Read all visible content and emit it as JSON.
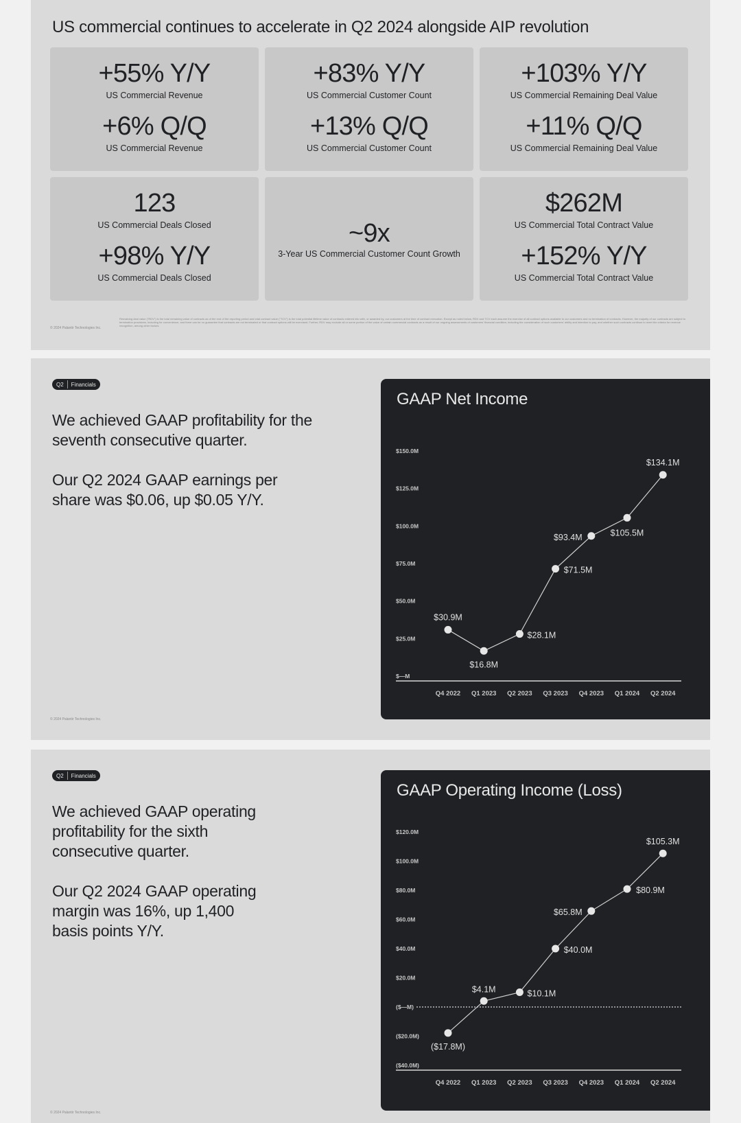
{
  "slide1": {
    "title": "US commercial continues to accelerate in Q2 2024 alongside AIP revolution",
    "cards": [
      {
        "v1": "+55% Y/Y",
        "l1": "US Commercial Revenue",
        "v2": "+6% Q/Q",
        "l2": "US Commercial Revenue"
      },
      {
        "v1": "+83% Y/Y",
        "l1": "US Commercial Customer Count",
        "v2": "+13% Q/Q",
        "l2": "US Commercial Customer Count"
      },
      {
        "v1": "+103% Y/Y",
        "l1": "US Commercial Remaining Deal Value",
        "v2": "+11% Q/Q",
        "l2": "US Commercial Remaining Deal Value"
      },
      {
        "v1": "123",
        "l1": "US Commercial Deals Closed",
        "v2": "+98% Y/Y",
        "l2": "US Commercial Deals Closed"
      },
      {
        "v1": "~9x",
        "l1": "3-Year US Commercial Customer Count Growth"
      },
      {
        "v1": "$262M",
        "l1": "US Commercial Total Contract Value",
        "v2": "+152% Y/Y",
        "l2": "US Commercial Total Contract Value"
      }
    ],
    "copyright": "© 2024 Palantir Technologies Inc.",
    "footnote": "Remaining deal value (\"RDV\") is the total remaining value of contracts as of the end of the reporting period and total contract value (\"TCV\") is the total potential lifetime value of contracts entered into with, or awarded by, our customers at the time of contract execution. Except as noted below, RDV and TCV each assume the exercise of all contract options available to our customers and no termination of contracts. However, the majority of our contracts are subject to termination provisions, including for convenience, and there can be no guarantee that contracts are not terminated or that contract options will be exercised. Further, RDV may exclude all or some portion of the value of certain commercial contracts as a result of our ongoing assessments of customers' financial condition, including the consideration of such customers' ability and intention to pay, and whether such contracts continue to meet the criteria for revenue recognition, among other factors."
  },
  "slide2": {
    "tag_left": "Q2",
    "tag_right": "Financials",
    "body_p1": "We achieved GAAP profitability for the seventh consecutive quarter.",
    "body_p2": "Our Q2 2024 GAAP earnings per share was $0.06, up $0.05 Y/Y.",
    "copyright": "© 2024 Palantir Technologies Inc."
  },
  "slide3": {
    "tag_left": "Q2",
    "tag_right": "Financials",
    "body_p1": "We achieved GAAP operating profitability for the sixth consecutive quarter.",
    "body_p2": "Our Q2 2024 GAAP operating margin was 16%, up 1,400 basis points Y/Y.",
    "copyright": "© 2024 Palantir Technologies Inc."
  },
  "chart_data": [
    {
      "type": "line",
      "title": "GAAP Net Income",
      "categories": [
        "Q4 2022",
        "Q1 2023",
        "Q2 2023",
        "Q3 2023",
        "Q4 2023",
        "Q1 2024",
        "Q2 2024"
      ],
      "values": [
        30.9,
        16.8,
        28.1,
        71.5,
        93.4,
        105.5,
        134.1
      ],
      "value_labels": [
        "$30.9M",
        "$16.8M",
        "$28.1M",
        "$71.5M",
        "$93.4M",
        "$105.5M",
        "$134.1M"
      ],
      "yticks": [
        "$—M",
        "$25.0M",
        "$50.0M",
        "$75.0M",
        "$100.0M",
        "$125.0M",
        "$150.0M"
      ],
      "ylim": [
        0,
        150
      ],
      "grid": false
    },
    {
      "type": "line",
      "title": "GAAP Operating Income (Loss)",
      "categories": [
        "Q4 2022",
        "Q1 2023",
        "Q2 2023",
        "Q3 2023",
        "Q4 2023",
        "Q1 2024",
        "Q2 2024"
      ],
      "values": [
        -17.8,
        4.1,
        10.1,
        40.0,
        65.8,
        80.9,
        105.3
      ],
      "value_labels": [
        "($17.8M)",
        "$4.1M",
        "$10.1M",
        "$40.0M",
        "$65.8M",
        "$80.9M",
        "$105.3M"
      ],
      "yticks": [
        "($40.0M)",
        "($20.0M)",
        "($—M)",
        "$20.0M",
        "$40.0M",
        "$60.0M",
        "$80.0M",
        "$100.0M",
        "$120.0M"
      ],
      "ylim": [
        -40,
        120
      ],
      "grid": false
    }
  ]
}
